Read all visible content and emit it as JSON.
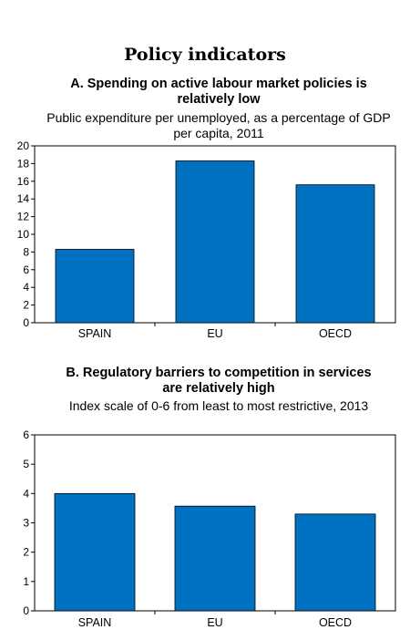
{
  "page_title": "Policy indicators",
  "colors": {
    "bar": "#0070C0",
    "axis": "#000000",
    "frame": "#000000"
  },
  "chart_data": [
    {
      "type": "bar",
      "title": "A. Spending on active labour market policies is relatively low",
      "subtitle": "Public expenditure per unemployed, as a percentage of GDP per capita, 2011",
      "categories": [
        "SPAIN",
        "EU",
        "OECD"
      ],
      "values": [
        8.3,
        18.3,
        15.6
      ],
      "ylim": [
        0,
        20
      ],
      "yticks": [
        "0",
        "2",
        "4",
        "6",
        "8",
        "10",
        "12",
        "14",
        "16",
        "18",
        "20"
      ],
      "grid": false
    },
    {
      "type": "bar",
      "title": "B. Regulatory barriers to competition in services are relatively high",
      "subtitle": "Index scale of 0-6 from least to most restrictive, 2013",
      "categories": [
        "SPAIN",
        "EU",
        "OECD"
      ],
      "values": [
        4.0,
        3.57,
        3.3
      ],
      "ylim": [
        0,
        6
      ],
      "yticks": [
        "0",
        "1",
        "2",
        "3",
        "4",
        "5",
        "6"
      ],
      "grid": false
    }
  ]
}
